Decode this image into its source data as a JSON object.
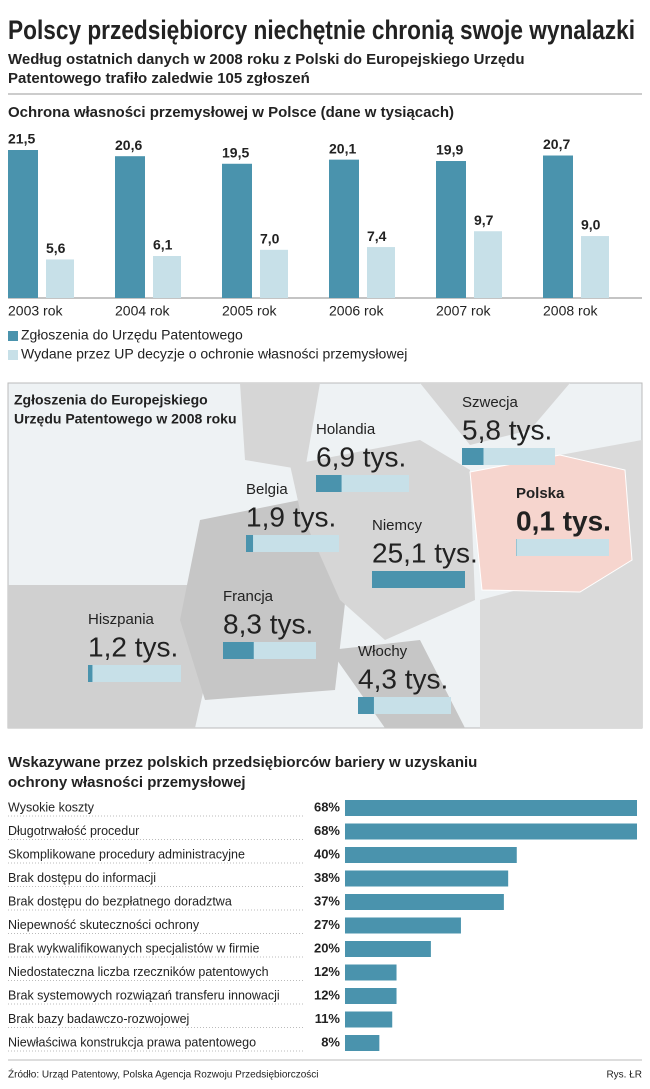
{
  "title": "Polscy przedsiębiorcy niechętnie chronią swoje wynalazki",
  "subtitle": [
    "Według ostatnich danych w 2008 roku z Polski do Europejskiego Urzędu",
    "Patentowego trafiło zaledwie 105 zgłoszeń"
  ],
  "chart_data": [
    {
      "type": "bar",
      "title": "Ochrona własności przemysłowej w Polsce (dane w tysiącach)",
      "categories": [
        "2003 rok",
        "2004 rok",
        "2005 rok",
        "2006 rok",
        "2007 rok",
        "2008 rok"
      ],
      "series": [
        {
          "name": "Zgłoszenia do Urzędu Patentowego",
          "color": "#4a93ad",
          "values": [
            21.5,
            20.6,
            19.5,
            20.1,
            19.9,
            20.7
          ],
          "value_labels": [
            "21,5",
            "20,6",
            "19,5",
            "20,1",
            "19,9",
            "20,7"
          ]
        },
        {
          "name": "Wydane przez UP decyzje o ochronie własności przemysłowej",
          "color": "#c7e0e8",
          "values": [
            5.6,
            6.1,
            7.0,
            7.4,
            9.7,
            9.0
          ],
          "value_labels": [
            "5,6",
            "6,1",
            "7,0",
            "7,4",
            "9,7",
            "9,0"
          ]
        }
      ]
    },
    {
      "type": "map",
      "title": [
        "Zgłoszenia do Europejskiego",
        "Urzędu Patentowego w 2008 roku"
      ],
      "categories": [
        "Holandia",
        "Szwecja",
        "Belgia",
        "Polska",
        "Niemcy",
        "Francja",
        "Hiszpania",
        "Włochy"
      ],
      "values": [
        6.9,
        5.8,
        1.9,
        0.1,
        25.1,
        8.3,
        1.2,
        4.3
      ],
      "value_labels": [
        "6,9 tys.",
        "5,8 tys.",
        "1,9 tys.",
        "0,1 tys.",
        "25,1 tys.",
        "8,3 tys.",
        "1,2 tys.",
        "4,3 tys."
      ],
      "color": "#4a93ad",
      "track_color": "#c7e0e8",
      "label_colors": [
        "#333333",
        "#333333",
        "#333333",
        "#c9434a",
        "#333333",
        "#333333",
        "#333333",
        "#333333"
      ]
    },
    {
      "type": "hbar",
      "title": [
        "Wskazywane przez polskich przedsiębiorców bariery w uzyskaniu",
        "ochrony własności przemysłowej"
      ],
      "categories": [
        "Wysokie koszty",
        "Długotrwałość procedur",
        "Skomplikowane procedury administracyjne",
        "Brak dostępu do informacji",
        "Brak dostępu do bezpłatnego doradztwa",
        "Niepewność skuteczności ochrony",
        "Brak wykwalifikowanych specjalistów w firmie",
        "Niedostateczna liczba rzeczników patentowych",
        "Brak systemowych rozwiązań transferu innowacji",
        "Brak bazy badawczo-rozwojowej",
        "Niewłaściwa konstrukcja prawa patentowego"
      ],
      "values": [
        68,
        68,
        40,
        38,
        37,
        27,
        20,
        12,
        12,
        11,
        8
      ],
      "value_labels": [
        "68%",
        "68%",
        "40%",
        "38%",
        "37%",
        "27%",
        "20%",
        "12%",
        "12%",
        "11%",
        "8%"
      ],
      "color": "#4a93ad"
    }
  ],
  "source": "Źródło: Urząd Patentowy, Polska Agencja Rozwoju Przedsiębiorczości",
  "credit": "Rys. ŁR"
}
